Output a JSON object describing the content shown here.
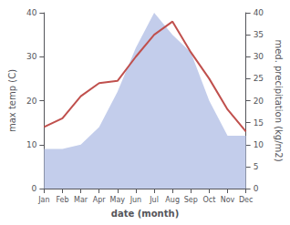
{
  "chart_data": {
    "type": "line",
    "xlabel": "date (month)",
    "ylabel": "max temp (C)",
    "y2label": "med. precipitation (kg/m2)",
    "categories": [
      "Jan",
      "Feb",
      "Mar",
      "Apr",
      "May",
      "Jun",
      "Jul",
      "Aug",
      "Sep",
      "Oct",
      "Nov",
      "Dec"
    ],
    "series": [
      {
        "type": "area",
        "axis": "y2",
        "color": "#b8c4e8",
        "values": [
          9,
          9,
          10,
          14,
          22,
          32,
          40,
          35,
          31,
          20,
          12,
          12
        ]
      },
      {
        "type": "line",
        "color": "#c0504d",
        "values": [
          14,
          16,
          21,
          24,
          24.5,
          30,
          35,
          38,
          31,
          25,
          18,
          13
        ]
      }
    ],
    "ylim": [
      0,
      40
    ],
    "yticks": [
      0,
      10,
      20,
      30,
      40
    ],
    "y2lim": [
      0,
      40
    ],
    "y2ticks": [
      0,
      5,
      10,
      15,
      20,
      25,
      30,
      35,
      40
    ],
    "grid": false
  }
}
